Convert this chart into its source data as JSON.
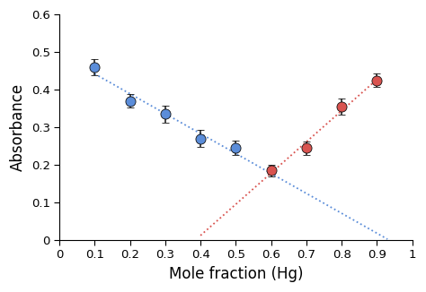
{
  "blue_x": [
    0.1,
    0.2,
    0.3,
    0.4,
    0.5
  ],
  "blue_y": [
    0.46,
    0.37,
    0.335,
    0.27,
    0.245
  ],
  "blue_yerr": [
    0.022,
    0.018,
    0.022,
    0.022,
    0.02
  ],
  "red_x": [
    0.6,
    0.7,
    0.8,
    0.9
  ],
  "red_y": [
    0.185,
    0.245,
    0.355,
    0.425
  ],
  "red_yerr": [
    0.015,
    0.018,
    0.022,
    0.018
  ],
  "blue_trend_x": [
    0.1,
    0.93
  ],
  "red_trend_x": [
    0.4,
    0.9
  ],
  "blue_color": "#5b8dd9",
  "red_color": "#d9534f",
  "xlabel": "Mole fraction (Hg)",
  "ylabel": "Absorbance",
  "xlim": [
    0,
    1.0
  ],
  "ylim": [
    0,
    0.6
  ],
  "xticks": [
    0,
    0.1,
    0.2,
    0.3,
    0.4,
    0.5,
    0.6,
    0.7,
    0.8,
    0.9,
    1
  ],
  "yticks": [
    0,
    0.1,
    0.2,
    0.3,
    0.4,
    0.5,
    0.6
  ],
  "xlabel_fontsize": 12,
  "ylabel_fontsize": 12,
  "tick_fontsize": 9.5,
  "marker_size": 8,
  "dotted_linewidth": 1.3,
  "capsize": 3,
  "elinewidth": 1.1,
  "background_color": "#ffffff"
}
